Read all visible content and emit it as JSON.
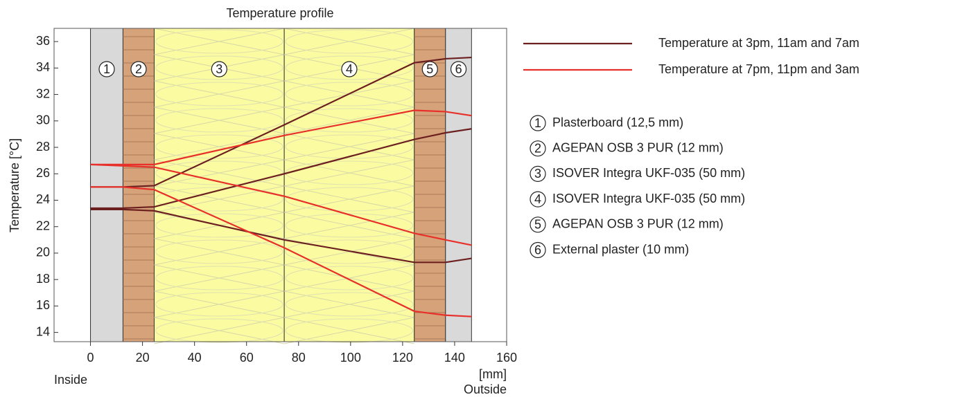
{
  "chart_data": {
    "type": "line",
    "title": "Temperature profile",
    "y_label": "Temperature  [°C]",
    "x_label": "[mm]",
    "inside_label": "Inside",
    "outside_label": "Outside",
    "xlim": [
      -14,
      160
    ],
    "xticks": [
      0,
      20,
      40,
      60,
      80,
      100,
      120,
      140,
      160
    ],
    "ylim": [
      13.3,
      37
    ],
    "yticks": [
      14,
      16,
      18,
      20,
      22,
      24,
      26,
      28,
      30,
      32,
      34,
      36
    ],
    "x": [
      0,
      12.5,
      24.5,
      74.5,
      124.5,
      136.5,
      146.5
    ],
    "series": [
      {
        "name": "Temperature at 3pm, 11am and 7am",
        "color": "#6b1f1f",
        "lines": [
          [
            25.0,
            25.0,
            25.1,
            29.7,
            34.4,
            34.7,
            34.8
          ],
          [
            23.4,
            23.4,
            23.5,
            26.0,
            28.6,
            29.1,
            29.4
          ],
          [
            23.3,
            23.3,
            23.2,
            21.0,
            19.3,
            19.3,
            19.6
          ]
        ]
      },
      {
        "name": "Temperature at 7pm, 11pm and 3am",
        "color": "#e8302a",
        "lines": [
          [
            26.7,
            26.7,
            26.7,
            28.9,
            30.8,
            30.7,
            30.4
          ],
          [
            26.7,
            26.6,
            26.5,
            24.3,
            21.5,
            21.0,
            20.6
          ],
          [
            25.0,
            25.0,
            24.8,
            20.4,
            15.6,
            15.3,
            15.2
          ]
        ]
      }
    ],
    "layers": [
      {
        "number": "1",
        "label": "Plasterboard (12,5 mm)",
        "start": 0,
        "end": 12.5,
        "color": "#d9d9d9"
      },
      {
        "number": "2",
        "label": "AGEPAN OSB 3 PUR (12 mm)",
        "start": 12.5,
        "end": 24.5,
        "color": "#d6a27a"
      },
      {
        "number": "3",
        "label": "ISOVER Integra UKF-035 (50 mm)",
        "start": 24.5,
        "end": 74.5,
        "color": "#fbfba2"
      },
      {
        "number": "4",
        "label": "ISOVER Integra UKF-035 (50 mm)",
        "start": 74.5,
        "end": 124.5,
        "color": "#fbfba2"
      },
      {
        "number": "5",
        "label": "AGEPAN OSB 3 PUR (12 mm)",
        "start": 124.5,
        "end": 136.5,
        "color": "#d6a27a"
      },
      {
        "number": "6",
        "label": "External plaster (10 mm)",
        "start": 136.5,
        "end": 146.5,
        "color": "#d9d9d9"
      }
    ]
  }
}
